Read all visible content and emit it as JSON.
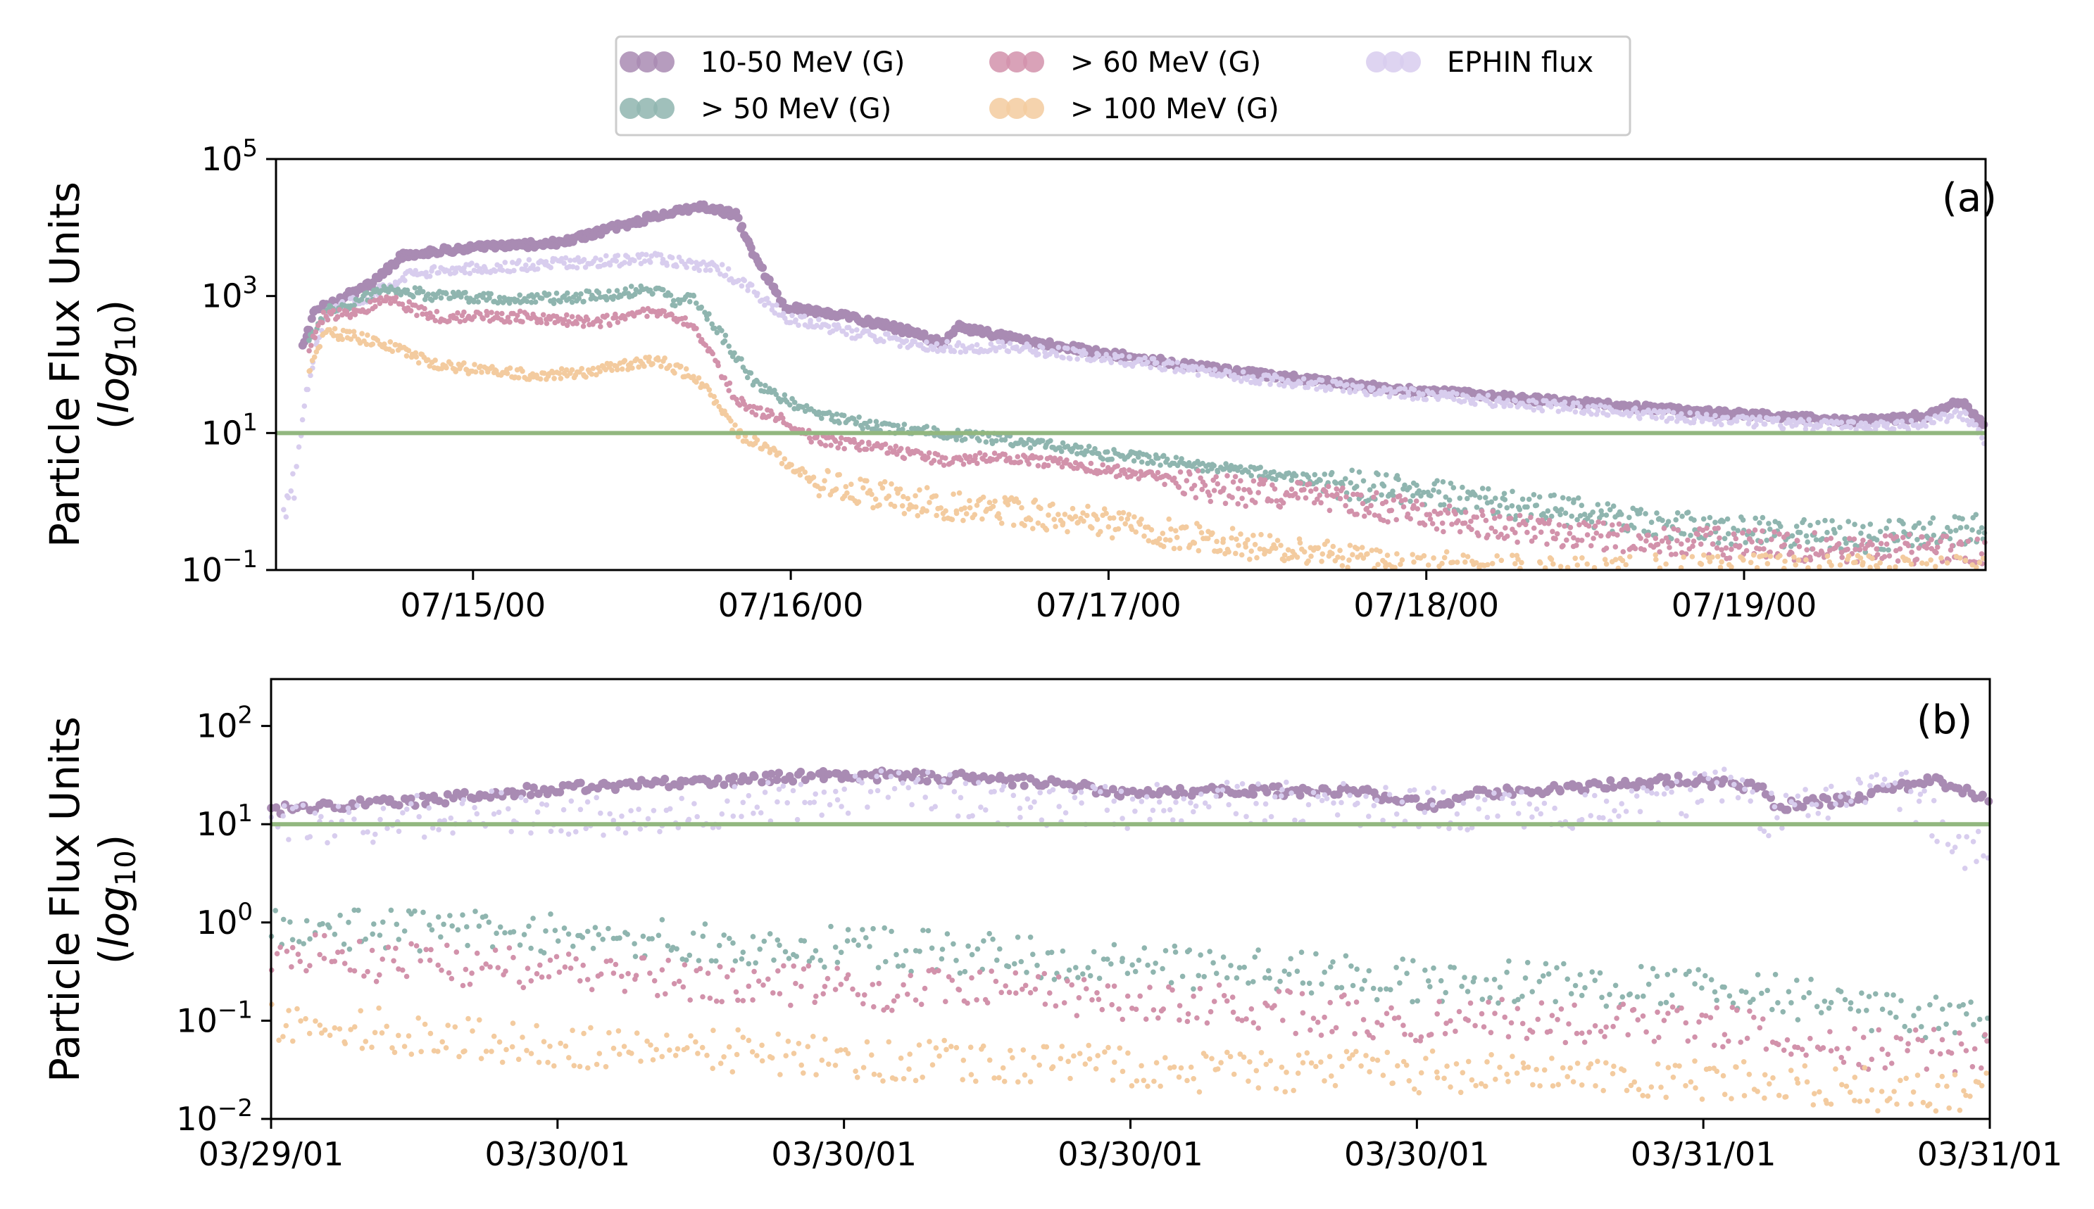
{
  "colors": {
    "g10_50": "#a98bb3",
    "g50": "#8fb5af",
    "g60": "#d292ab",
    "g100": "#f3cb9f",
    "ephin": "#d8cdee",
    "threshold": "#92b77f"
  },
  "legend": {
    "placement": "top-center",
    "entries": [
      {
        "key": "g10_50",
        "label": "10-50 MeV (G)"
      },
      {
        "key": "g50",
        "label": "> 50 MeV (G)"
      },
      {
        "key": "g60",
        "label": "> 60 MeV (G)"
      },
      {
        "key": "g100",
        "label": "> 100 MeV (G)"
      },
      {
        "key": "ephin",
        "label": "EPHIN flux"
      }
    ]
  },
  "chart_data": [
    {
      "type": "scatter",
      "panel_label": "(a)",
      "ylabel_main": "Particle Flux Units",
      "ylabel_log_prefix": "(",
      "ylabel_log_word": "log",
      "ylabel_log_sub": "10",
      "ylabel_log_suffix": ")",
      "yscale": "log",
      "ylim": [
        0.1,
        100000
      ],
      "yticks": [
        {
          "base": "10",
          "exp": "−1",
          "value": 0.1
        },
        {
          "base": "10",
          "exp": "1",
          "value": 10
        },
        {
          "base": "10",
          "exp": "3",
          "value": 1000
        },
        {
          "base": "10",
          "exp": "5",
          "value": 100000
        }
      ],
      "xlim": [
        0,
        5.38
      ],
      "xticks": [
        {
          "label": "07/15/00",
          "value": 0.62
        },
        {
          "label": "07/16/00",
          "value": 1.62
        },
        {
          "label": "07/17/00",
          "value": 2.62
        },
        {
          "label": "07/18/00",
          "value": 3.62
        },
        {
          "label": "07/19/00",
          "value": 4.62
        }
      ],
      "threshold": 10,
      "series": [
        {
          "key": "g10_50",
          "label": "10-50 MeV (G)",
          "x": [
            0.08,
            0.12,
            0.2,
            0.3,
            0.4,
            0.6,
            0.9,
            1.2,
            1.35,
            1.45,
            1.5,
            1.6,
            1.8,
            2.0,
            2.1,
            2.15,
            2.3,
            2.6,
            3.0,
            3.5,
            4.0,
            4.5,
            5.0,
            5.2,
            5.3,
            5.38
          ],
          "y": [
            150,
            600,
            900,
            1500,
            4000,
            5000,
            6000,
            15000,
            20000,
            15000,
            4000,
            700,
            500,
            300,
            200,
            350,
            250,
            150,
            80,
            45,
            30,
            20,
            15,
            18,
            30,
            12
          ]
        },
        {
          "key": "ephin",
          "label": "EPHIN flux",
          "x": [
            0.02,
            0.06,
            0.1,
            0.15,
            0.2,
            0.3,
            0.4,
            0.6,
            0.9,
            1.2,
            1.4,
            1.5,
            1.6,
            1.8,
            2.0,
            2.1,
            2.3,
            2.6,
            3.0,
            3.5,
            4.0,
            4.5,
            5.0,
            5.2,
            5.3,
            5.38
          ],
          "y": [
            0.5,
            2,
            50,
            500,
            700,
            1000,
            2000,
            2500,
            3000,
            3500,
            2500,
            1200,
            500,
            300,
            200,
            180,
            180,
            130,
            70,
            40,
            25,
            16,
            12,
            14,
            20,
            8
          ]
        },
        {
          "key": "g50",
          "label": "> 50 MeV (G)",
          "x": [
            0.1,
            0.15,
            0.25,
            0.35,
            0.5,
            0.8,
            1.0,
            1.2,
            1.25,
            1.3,
            1.35,
            1.5,
            1.6,
            1.7,
            1.9,
            2.1,
            2.3,
            2.6,
            3.0,
            3.5,
            4.0,
            4.5,
            5.0,
            5.38
          ],
          "y": [
            200,
            600,
            800,
            1300,
            1000,
            900,
            1000,
            1300,
            800,
            1000,
            600,
            60,
            30,
            20,
            12,
            10,
            8,
            5,
            3,
            1.5,
            0.8,
            0.4,
            0.3,
            0.4
          ]
        },
        {
          "key": "g60",
          "label": "> 60 MeV (G)",
          "x": [
            0.1,
            0.15,
            0.25,
            0.35,
            0.5,
            0.8,
            1.0,
            1.2,
            1.3,
            1.35,
            1.45,
            1.55,
            1.6,
            1.7,
            1.9,
            2.1,
            2.3,
            2.6,
            3.0,
            3.5,
            4.0,
            4.5,
            5.0,
            5.38
          ],
          "y": [
            150,
            500,
            600,
            900,
            500,
            500,
            400,
            600,
            400,
            200,
            30,
            18,
            15,
            8,
            6,
            4,
            4.5,
            3,
            1.5,
            0.8,
            0.35,
            0.25,
            0.2,
            0.2
          ]
        },
        {
          "key": "g100",
          "label": "> 100 MeV (G)",
          "x": [
            0.1,
            0.15,
            0.25,
            0.35,
            0.5,
            0.8,
            1.0,
            1.2,
            1.3,
            1.35,
            1.45,
            1.55,
            1.6,
            1.7,
            1.9,
            2.1,
            2.3,
            2.6,
            3.0,
            3.5,
            4.0,
            4.5,
            5.0,
            5.38
          ],
          "y": [
            80,
            300,
            250,
            200,
            100,
            70,
            80,
            120,
            70,
            50,
            10,
            6,
            4,
            2,
            1.2,
            0.9,
            0.7,
            0.5,
            0.25,
            0.12,
            0.1,
            0.1,
            0.1,
            0.1
          ]
        }
      ]
    },
    {
      "type": "scatter",
      "panel_label": "(b)",
      "ylabel_main": "Particle Flux Units",
      "ylabel_log_prefix": "(",
      "ylabel_log_word": "log",
      "ylabel_log_sub": "10",
      "ylabel_log_suffix": ")",
      "yscale": "log",
      "ylim": [
        0.01,
        300
      ],
      "yticks": [
        {
          "base": "10",
          "exp": "−2",
          "value": 0.01
        },
        {
          "base": "10",
          "exp": "−1",
          "value": 0.1
        },
        {
          "base": "10",
          "exp": "0",
          "value": 1
        },
        {
          "base": "10",
          "exp": "1",
          "value": 10
        },
        {
          "base": "10",
          "exp": "2",
          "value": 100
        }
      ],
      "xlim": [
        0,
        6
      ],
      "xticks": [
        {
          "label": "03/29/01",
          "value": 0
        },
        {
          "label": "03/30/01",
          "value": 1
        },
        {
          "label": "03/30/01",
          "value": 2
        },
        {
          "label": "03/30/01",
          "value": 3
        },
        {
          "label": "03/30/01",
          "value": 4
        },
        {
          "label": "03/31/01",
          "value": 5
        },
        {
          "label": "03/31/01",
          "value": 6
        }
      ],
      "threshold": 10,
      "series": [
        {
          "key": "g10_50",
          "label": "10-50 MeV (G)",
          "x": [
            0,
            0.3,
            0.6,
            0.9,
            1.2,
            1.6,
            2.0,
            2.4,
            2.8,
            3.0,
            3.4,
            3.8,
            4.1,
            4.2,
            4.6,
            4.9,
            5.2,
            5.25,
            5.5,
            5.8,
            6.0
          ],
          "y": [
            14,
            16,
            18,
            22,
            25,
            28,
            32,
            30,
            25,
            20,
            22,
            21,
            15,
            20,
            24,
            28,
            24,
            15,
            18,
            28,
            18
          ]
        },
        {
          "key": "ephin",
          "label": "EPHIN flux",
          "x": [
            0,
            0.2,
            0.5,
            0.8,
            1.0,
            1.4,
            1.8,
            2.2,
            2.6,
            3.0,
            3.5,
            3.9,
            4.2,
            4.6,
            4.9,
            5.1,
            5.2,
            5.5,
            5.7,
            5.9,
            6.0
          ],
          "y": [
            12,
            9,
            12,
            14,
            11,
            12,
            18,
            22,
            16,
            15,
            17,
            15,
            14,
            15,
            17,
            30,
            12,
            20,
            22,
            6,
            5
          ]
        },
        {
          "key": "g50",
          "label": "> 50 MeV (G)",
          "x": [
            0,
            0.4,
            0.8,
            1.2,
            1.6,
            2.0,
            2.4,
            2.8,
            3.2,
            3.6,
            4.0,
            4.4,
            4.8,
            5.2,
            5.6,
            6.0
          ],
          "y": [
            0.9,
            0.85,
            0.8,
            0.7,
            0.6,
            0.55,
            0.5,
            0.4,
            0.35,
            0.3,
            0.25,
            0.25,
            0.22,
            0.2,
            0.12,
            0.1
          ]
        },
        {
          "key": "g60",
          "label": "> 60 MeV (G)",
          "x": [
            0,
            0.4,
            0.8,
            1.2,
            1.6,
            2.0,
            2.4,
            2.8,
            3.2,
            3.6,
            4.0,
            4.4,
            4.8,
            5.2,
            5.6,
            6.0
          ],
          "y": [
            0.5,
            0.4,
            0.35,
            0.3,
            0.25,
            0.22,
            0.2,
            0.18,
            0.15,
            0.12,
            0.1,
            0.1,
            0.09,
            0.08,
            0.05,
            0.05
          ]
        },
        {
          "key": "g100",
          "label": "> 100 MeV (G)",
          "x": [
            0,
            0.4,
            0.8,
            1.2,
            1.6,
            2.0,
            2.4,
            2.8,
            3.2,
            3.6,
            4.0,
            4.4,
            4.8,
            5.2,
            5.6,
            6.0
          ],
          "y": [
            0.1,
            0.08,
            0.06,
            0.05,
            0.05,
            0.04,
            0.04,
            0.035,
            0.03,
            0.03,
            0.03,
            0.03,
            0.025,
            0.025,
            0.02,
            0.02
          ]
        }
      ]
    }
  ]
}
